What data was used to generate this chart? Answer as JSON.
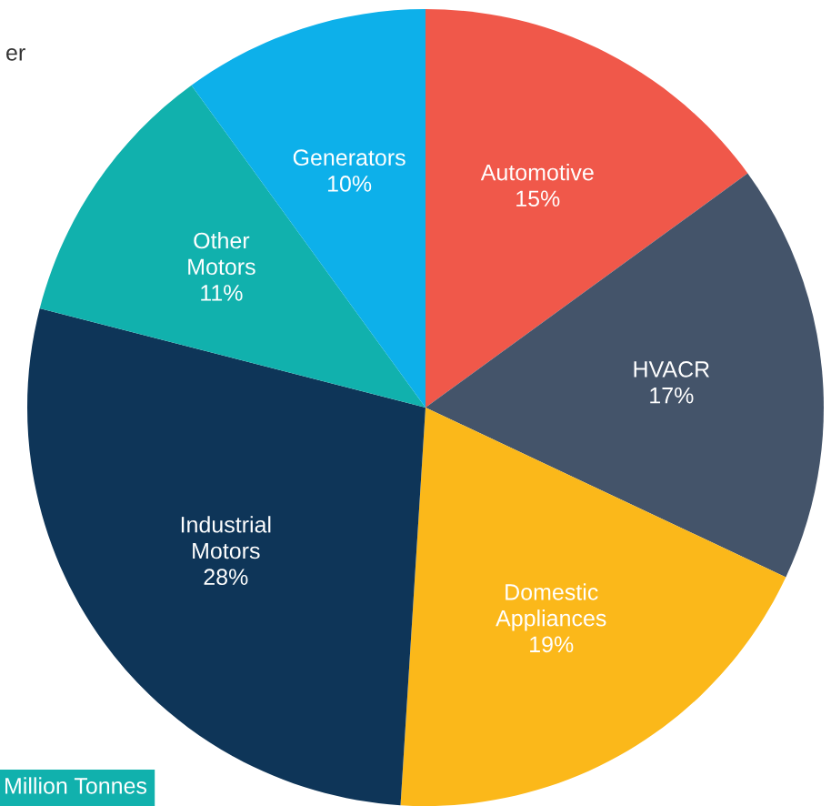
{
  "chart_data": {
    "type": "pie",
    "categories": [
      "Automotive",
      "HVACR",
      "Domestic Appliances",
      "Industrial Motors",
      "Other Motors",
      "Generators"
    ],
    "values": [
      15,
      17,
      19,
      28,
      11,
      10
    ],
    "value_labels": [
      "15%",
      "17%",
      "19%",
      "28%",
      "11%",
      "10%"
    ],
    "colors": [
      "#f0584a",
      "#44546a",
      "#fbb81a",
      "#0e3558",
      "#11b1ad",
      "#0db0ea"
    ],
    "annotations": [
      "er",
      "Million Tonnes"
    ]
  }
}
